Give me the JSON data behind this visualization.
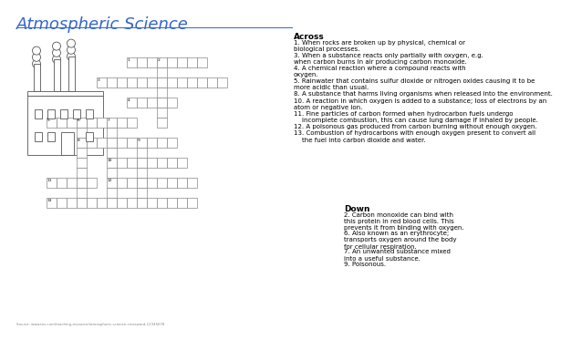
{
  "title": "Atmospheric Science",
  "title_color": "#3366CC",
  "title_fontsize": 13,
  "bg_color": "#ffffff",
  "grid_color": "#888888",
  "cell_size": 11.0,
  "clues_across_header": "Across",
  "clues_across": [
    "1. When rocks are broken up by physical, chemical or\nbiological processes.",
    "3. When a substance reacts only partially with oxygen, e.g.\nwhen carbon burns in air producing carbon monoxide.",
    "4. A chemical reaction where a compound reacts with\noxygen.",
    "5. Rainwater that contains sulfur dioxide or nitrogen oxides causing it to be\nmore acidic than usual.",
    "8. A substance that harms living organisms when released into the environment.",
    "10. A reaction in which oxygen is added to a substance; loss of electrons by an\natom or negative ion.",
    "11. Fine particles of carbon formed when hydrocarbon fuels undergo\n    incomplete combustion, this can cause lung damage if inhaled by people.",
    "12. A poisonous gas produced from carbon burning without enough oxygen.",
    "13. Combustion of hydrocarbons with enough oxygen present to convert all\n    the fuel into carbon dioxide and water."
  ],
  "clues_down_header": "Down",
  "clues_down": [
    "2. Carbon monoxide can bind with\nthis protein in red blood cells. This\nprevents it from binding with oxygen.",
    "6. Also known as an erythrocyte;\ntransports oxygen around the body\nfor cellular respiration.",
    "7. An unwanted substance mixed\ninto a useful substance.",
    "9. Poisonous."
  ],
  "number_fontsize": 3.2,
  "clue_fontsize": 5.0,
  "header_fontsize": 6.5,
  "line_color": "#3366CC"
}
